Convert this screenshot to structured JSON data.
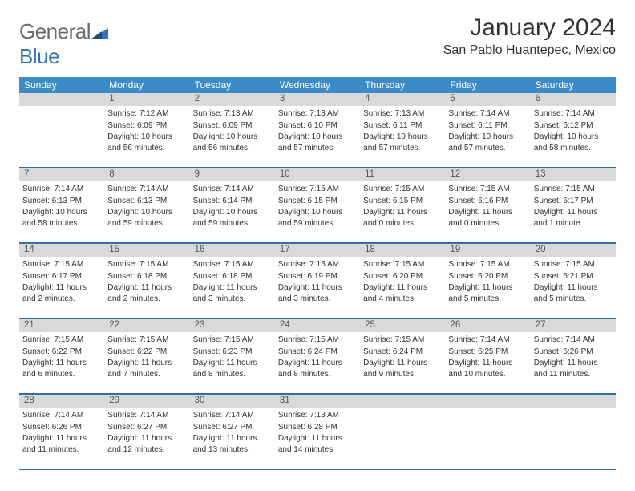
{
  "logo": {
    "left": "General",
    "right": "Blue"
  },
  "title": "January 2024",
  "location": "San Pablo Huantepec, Mexico",
  "colors": {
    "header_bg": "#3b8bc9",
    "header_text": "#ffffff",
    "daynum_bg": "#d9d9d9",
    "border": "#2f6ea8",
    "text": "#333333",
    "logo_gray": "#6b6b6b",
    "logo_blue": "#2f75b5"
  },
  "days_of_week": [
    "Sunday",
    "Monday",
    "Tuesday",
    "Wednesday",
    "Thursday",
    "Friday",
    "Saturday"
  ],
  "weeks": [
    {
      "nums": [
        "",
        "1",
        "2",
        "3",
        "4",
        "5",
        "6"
      ],
      "cells": [
        "",
        "Sunrise: 7:12 AM\nSunset: 6:09 PM\nDaylight: 10 hours and 56 minutes.",
        "Sunrise: 7:13 AM\nSunset: 6:09 PM\nDaylight: 10 hours and 56 minutes.",
        "Sunrise: 7:13 AM\nSunset: 6:10 PM\nDaylight: 10 hours and 57 minutes.",
        "Sunrise: 7:13 AM\nSunset: 6:11 PM\nDaylight: 10 hours and 57 minutes.",
        "Sunrise: 7:14 AM\nSunset: 6:11 PM\nDaylight: 10 hours and 57 minutes.",
        "Sunrise: 7:14 AM\nSunset: 6:12 PM\nDaylight: 10 hours and 58 minutes."
      ]
    },
    {
      "nums": [
        "7",
        "8",
        "9",
        "10",
        "11",
        "12",
        "13"
      ],
      "cells": [
        "Sunrise: 7:14 AM\nSunset: 6:13 PM\nDaylight: 10 hours and 58 minutes.",
        "Sunrise: 7:14 AM\nSunset: 6:13 PM\nDaylight: 10 hours and 59 minutes.",
        "Sunrise: 7:14 AM\nSunset: 6:14 PM\nDaylight: 10 hours and 59 minutes.",
        "Sunrise: 7:15 AM\nSunset: 6:15 PM\nDaylight: 10 hours and 59 minutes.",
        "Sunrise: 7:15 AM\nSunset: 6:15 PM\nDaylight: 11 hours and 0 minutes.",
        "Sunrise: 7:15 AM\nSunset: 6:16 PM\nDaylight: 11 hours and 0 minutes.",
        "Sunrise: 7:15 AM\nSunset: 6:17 PM\nDaylight: 11 hours and 1 minute."
      ]
    },
    {
      "nums": [
        "14",
        "15",
        "16",
        "17",
        "18",
        "19",
        "20"
      ],
      "cells": [
        "Sunrise: 7:15 AM\nSunset: 6:17 PM\nDaylight: 11 hours and 2 minutes.",
        "Sunrise: 7:15 AM\nSunset: 6:18 PM\nDaylight: 11 hours and 2 minutes.",
        "Sunrise: 7:15 AM\nSunset: 6:18 PM\nDaylight: 11 hours and 3 minutes.",
        "Sunrise: 7:15 AM\nSunset: 6:19 PM\nDaylight: 11 hours and 3 minutes.",
        "Sunrise: 7:15 AM\nSunset: 6:20 PM\nDaylight: 11 hours and 4 minutes.",
        "Sunrise: 7:15 AM\nSunset: 6:20 PM\nDaylight: 11 hours and 5 minutes.",
        "Sunrise: 7:15 AM\nSunset: 6:21 PM\nDaylight: 11 hours and 5 minutes."
      ]
    },
    {
      "nums": [
        "21",
        "22",
        "23",
        "24",
        "25",
        "26",
        "27"
      ],
      "cells": [
        "Sunrise: 7:15 AM\nSunset: 6:22 PM\nDaylight: 11 hours and 6 minutes.",
        "Sunrise: 7:15 AM\nSunset: 6:22 PM\nDaylight: 11 hours and 7 minutes.",
        "Sunrise: 7:15 AM\nSunset: 6:23 PM\nDaylight: 11 hours and 8 minutes.",
        "Sunrise: 7:15 AM\nSunset: 6:24 PM\nDaylight: 11 hours and 8 minutes.",
        "Sunrise: 7:15 AM\nSunset: 6:24 PM\nDaylight: 11 hours and 9 minutes.",
        "Sunrise: 7:14 AM\nSunset: 6:25 PM\nDaylight: 11 hours and 10 minutes.",
        "Sunrise: 7:14 AM\nSunset: 6:26 PM\nDaylight: 11 hours and 11 minutes."
      ]
    },
    {
      "nums": [
        "28",
        "29",
        "30",
        "31",
        "",
        "",
        ""
      ],
      "cells": [
        "Sunrise: 7:14 AM\nSunset: 6:26 PM\nDaylight: 11 hours and 11 minutes.",
        "Sunrise: 7:14 AM\nSunset: 6:27 PM\nDaylight: 11 hours and 12 minutes.",
        "Sunrise: 7:14 AM\nSunset: 6:27 PM\nDaylight: 11 hours and 13 minutes.",
        "Sunrise: 7:13 AM\nSunset: 6:28 PM\nDaylight: 11 hours and 14 minutes.",
        "",
        "",
        ""
      ]
    }
  ]
}
